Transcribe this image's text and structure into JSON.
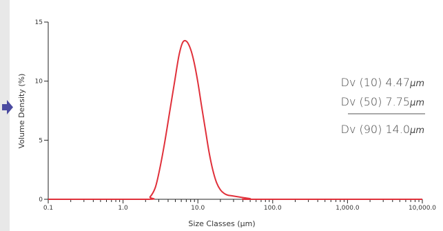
{
  "colors": {
    "series": "#e0303a",
    "axis": "#222222",
    "arrow": "#4a4aa0",
    "divider": "#555555"
  },
  "chart_data": {
    "type": "line",
    "xscale": "log",
    "xlabel": "Size Classes (µm)",
    "ylabel": "Volume Density (%)",
    "xlim": [
      0.1,
      10000
    ],
    "ylim": [
      0,
      15
    ],
    "yticks": [
      "0",
      "5",
      "10",
      "15"
    ],
    "xticks": [
      "0.1",
      "1.0",
      "10.0",
      "100.0",
      "1,000.0",
      "10,000.0"
    ],
    "grid": false,
    "series": [
      {
        "x": [
          0.1,
          2.0,
          2.3,
          2.7,
          3.1,
          3.6,
          4.2,
          4.9,
          5.6,
          6.3,
          7.1,
          8.0,
          8.9,
          10.0,
          11.2,
          12.6,
          14.1,
          15.8,
          17.8,
          20.0,
          22.4,
          25.1,
          28.2,
          31.6,
          39.8,
          50.1,
          60.0,
          10000
        ],
        "y": [
          0,
          0,
          0.2,
          1.0,
          2.6,
          4.8,
          7.4,
          10.0,
          12.2,
          13.3,
          13.35,
          12.7,
          11.6,
          9.9,
          7.9,
          5.9,
          4.0,
          2.5,
          1.4,
          0.8,
          0.5,
          0.35,
          0.3,
          0.25,
          0.15,
          0.05,
          0,
          0
        ]
      }
    ],
    "annotations": [
      {
        "label": "Dv (10)",
        "value": "4.47",
        "unit": "µm"
      },
      {
        "label": "Dv (50)",
        "value": "7.75",
        "unit": "µm"
      },
      {
        "label": "Dv (90)",
        "value": "14.0",
        "unit": "µm"
      }
    ]
  }
}
